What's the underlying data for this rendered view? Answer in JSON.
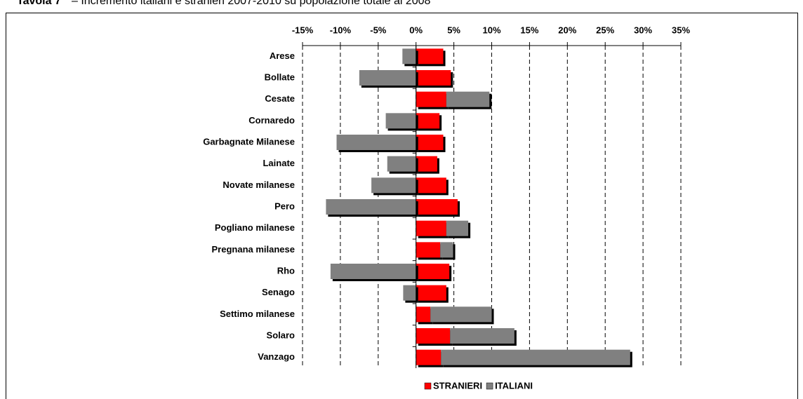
{
  "chart_data": {
    "type": "stacked_hbar",
    "title_label": "Tavola 7",
    "title": "– Incremento italiani e stranieri 2007-2010 su popolazione totale al 2008",
    "categories": [
      "Arese",
      "Bollate",
      "Cesate",
      "Cornaredo",
      "Garbagnate Milanese",
      "Lainate",
      "Novate milanese",
      "Pero",
      "Pogliano milanese",
      "Pregnana milanese",
      "Rho",
      "Senago",
      "Settimo milanese",
      "Solaro",
      "Vanzago"
    ],
    "series": [
      {
        "name": "STRANIERI",
        "color": "#ff0000",
        "values": [
          3.6,
          4.6,
          4.0,
          3.1,
          3.6,
          2.8,
          4.0,
          5.5,
          4.0,
          3.2,
          4.4,
          4.0,
          1.9,
          4.5,
          3.3
        ]
      },
      {
        "name": "ITALIANI",
        "color": "#808080",
        "values": [
          -1.8,
          -7.5,
          5.7,
          -4.0,
          -10.5,
          -3.8,
          -5.9,
          -11.9,
          2.9,
          1.7,
          -11.3,
          -1.7,
          8.1,
          8.5,
          25.0
        ]
      }
    ],
    "xlim": [
      -15,
      35
    ],
    "xticks": [
      {
        "value": -15,
        "label": "-15%"
      },
      {
        "value": -10,
        "label": "-10%"
      },
      {
        "value": -5,
        "label": "-5%"
      },
      {
        "value": 0,
        "label": "0%"
      },
      {
        "value": 5,
        "label": "5%"
      },
      {
        "value": 10,
        "label": "10%"
      },
      {
        "value": 15,
        "label": "15%"
      },
      {
        "value": 20,
        "label": "20%"
      },
      {
        "value": 25,
        "label": "25%"
      },
      {
        "value": 30,
        "label": "30%"
      },
      {
        "value": 35,
        "label": "35%"
      }
    ],
    "grid": true,
    "legend": "bottom"
  }
}
